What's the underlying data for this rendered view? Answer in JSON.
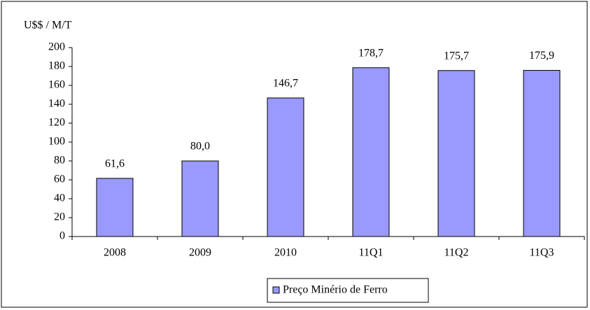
{
  "chart_data": {
    "type": "bar",
    "y_label": "U$$ / M/T",
    "categories": [
      "2008",
      "2009",
      "2010",
      "11Q1",
      "11Q2",
      "11Q3"
    ],
    "series": [
      {
        "name": "Preço Minério de Ferro",
        "color": "#9999ff",
        "values": [
          61.6,
          80.0,
          146.7,
          178.7,
          175.7,
          175.9
        ],
        "value_labels": [
          "61,6",
          "80,0",
          "146,7",
          "178,7",
          "175,7",
          "175,9"
        ]
      }
    ],
    "ylim": [
      0,
      200
    ],
    "yticks": [
      0,
      20,
      40,
      60,
      80,
      100,
      120,
      140,
      160,
      180,
      200
    ],
    "grid": false,
    "legend": "bottom"
  }
}
